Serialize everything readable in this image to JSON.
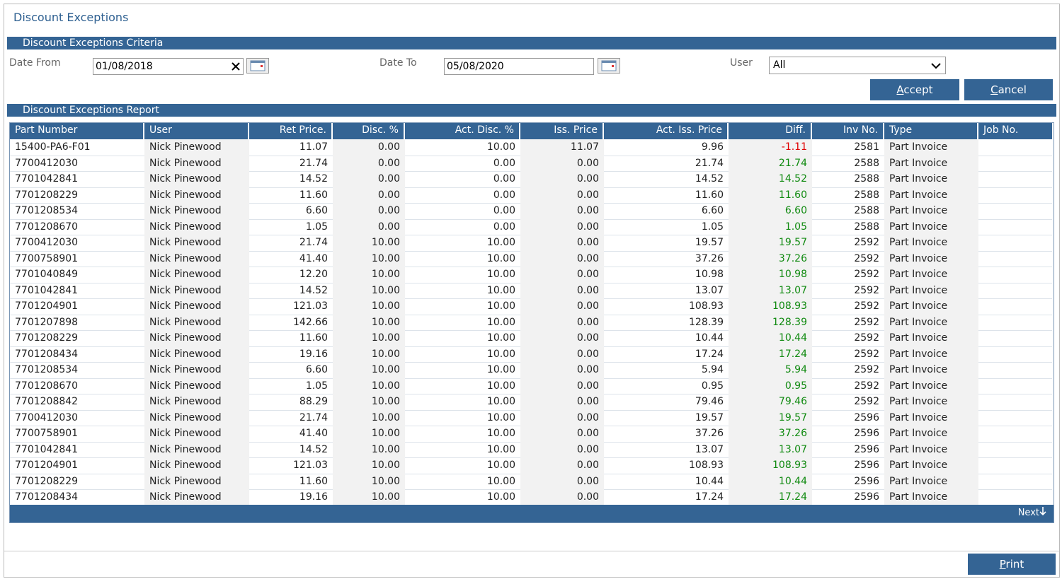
{
  "window": {
    "title": "Discount Exceptions"
  },
  "criteria": {
    "title": "Discount Exceptions Criteria",
    "date_from_label": "Date From",
    "date_from": "01/08/2018",
    "date_to_label": "Date To",
    "date_to": "05/08/2020",
    "user_label": "User",
    "user": "All",
    "accept": "Accept",
    "cancel": "Cancel"
  },
  "report": {
    "title": "Discount Exceptions Report",
    "columns": [
      "Part Number",
      "User",
      "Ret Price.",
      "Disc. %",
      "Act. Disc. %",
      "Iss. Price",
      "Act. Iss. Price",
      "Diff.",
      "Inv No.",
      "Type",
      "Job No."
    ],
    "rows": [
      [
        "15400-PA6-F01",
        "Nick Pinewood",
        "11.07",
        "0.00",
        "10.00",
        "11.07",
        "9.96",
        "-1.11",
        "2581",
        "Part Invoice"
      ],
      [
        "7700412030",
        "Nick Pinewood",
        "21.74",
        "0.00",
        "0.00",
        "0.00",
        "21.74",
        "21.74",
        "2588",
        "Part Invoice"
      ],
      [
        "7701042841",
        "Nick Pinewood",
        "14.52",
        "0.00",
        "0.00",
        "0.00",
        "14.52",
        "14.52",
        "2588",
        "Part Invoice"
      ],
      [
        "7701208229",
        "Nick Pinewood",
        "11.60",
        "0.00",
        "0.00",
        "0.00",
        "11.60",
        "11.60",
        "2588",
        "Part Invoice"
      ],
      [
        "7701208534",
        "Nick Pinewood",
        "6.60",
        "0.00",
        "0.00",
        "0.00",
        "6.60",
        "6.60",
        "2588",
        "Part Invoice"
      ],
      [
        "7701208670",
        "Nick Pinewood",
        "1.05",
        "0.00",
        "0.00",
        "0.00",
        "1.05",
        "1.05",
        "2588",
        "Part Invoice"
      ],
      [
        "7700412030",
        "Nick Pinewood",
        "21.74",
        "10.00",
        "10.00",
        "0.00",
        "19.57",
        "19.57",
        "2592",
        "Part Invoice"
      ],
      [
        "7700758901",
        "Nick Pinewood",
        "41.40",
        "10.00",
        "10.00",
        "0.00",
        "37.26",
        "37.26",
        "2592",
        "Part Invoice"
      ],
      [
        "7701040849",
        "Nick Pinewood",
        "12.20",
        "10.00",
        "10.00",
        "0.00",
        "10.98",
        "10.98",
        "2592",
        "Part Invoice"
      ],
      [
        "7701042841",
        "Nick Pinewood",
        "14.52",
        "10.00",
        "10.00",
        "0.00",
        "13.07",
        "13.07",
        "2592",
        "Part Invoice"
      ],
      [
        "7701204901",
        "Nick Pinewood",
        "121.03",
        "10.00",
        "10.00",
        "0.00",
        "108.93",
        "108.93",
        "2592",
        "Part Invoice"
      ],
      [
        "7701207898",
        "Nick Pinewood",
        "142.66",
        "10.00",
        "10.00",
        "0.00",
        "128.39",
        "128.39",
        "2592",
        "Part Invoice"
      ],
      [
        "7701208229",
        "Nick Pinewood",
        "11.60",
        "10.00",
        "10.00",
        "0.00",
        "10.44",
        "10.44",
        "2592",
        "Part Invoice"
      ],
      [
        "7701208434",
        "Nick Pinewood",
        "19.16",
        "10.00",
        "10.00",
        "0.00",
        "17.24",
        "17.24",
        "2592",
        "Part Invoice"
      ],
      [
        "7701208534",
        "Nick Pinewood",
        "6.60",
        "10.00",
        "10.00",
        "0.00",
        "5.94",
        "5.94",
        "2592",
        "Part Invoice"
      ],
      [
        "7701208670",
        "Nick Pinewood",
        "1.05",
        "10.00",
        "10.00",
        "0.00",
        "0.95",
        "0.95",
        "2592",
        "Part Invoice"
      ],
      [
        "7701208842",
        "Nick Pinewood",
        "88.29",
        "10.00",
        "10.00",
        "0.00",
        "79.46",
        "79.46",
        "2592",
        "Part Invoice"
      ],
      [
        "7700412030",
        "Nick Pinewood",
        "21.74",
        "10.00",
        "10.00",
        "0.00",
        "19.57",
        "19.57",
        "2596",
        "Part Invoice"
      ],
      [
        "7700758901",
        "Nick Pinewood",
        "41.40",
        "10.00",
        "10.00",
        "0.00",
        "37.26",
        "37.26",
        "2596",
        "Part Invoice"
      ],
      [
        "7701042841",
        "Nick Pinewood",
        "14.52",
        "10.00",
        "10.00",
        "0.00",
        "13.07",
        "13.07",
        "2596",
        "Part Invoice"
      ],
      [
        "7701204901",
        "Nick Pinewood",
        "121.03",
        "10.00",
        "10.00",
        "0.00",
        "108.93",
        "108.93",
        "2596",
        "Part Invoice"
      ],
      [
        "7701208229",
        "Nick Pinewood",
        "11.60",
        "10.00",
        "10.00",
        "0.00",
        "10.44",
        "10.44",
        "2596",
        "Part Invoice"
      ],
      [
        "7701208434",
        "Nick Pinewood",
        "19.16",
        "10.00",
        "10.00",
        "0.00",
        "17.24",
        "17.24",
        "2596",
        "Part Invoice"
      ]
    ],
    "next": "Next"
  },
  "print": "Print"
}
